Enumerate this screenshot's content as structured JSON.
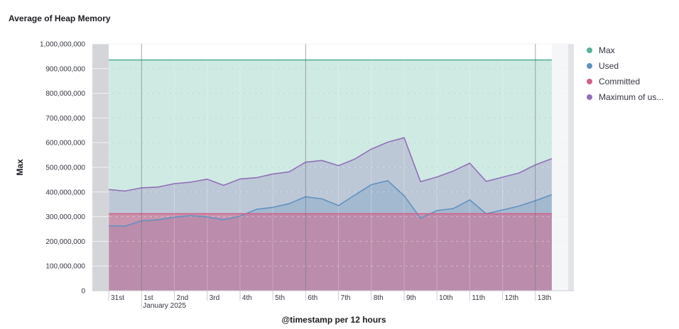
{
  "chart_data": {
    "type": "area",
    "title": "Average of Heap Memory",
    "xlabel": "@timestamp per 12 hours",
    "ylabel": "Max",
    "ylim": [
      0,
      1000000000
    ],
    "yticks": [
      0,
      100000000,
      200000000,
      300000000,
      400000000,
      500000000,
      600000000,
      700000000,
      800000000,
      900000000,
      1000000000
    ],
    "ytick_labels": [
      "0",
      "100,000,000",
      "200,000,000",
      "300,000,000",
      "400,000,000",
      "500,000,000",
      "600,000,000",
      "700,000,000",
      "800,000,000",
      "900,000,000",
      "1,000,000,000"
    ],
    "xlim": [
      "2024-12-30T12:00",
      "2025-01-14T00:00"
    ],
    "x": [
      "2024-12-31T00:00",
      "2024-12-31T12:00",
      "2025-01-01T00:00",
      "2025-01-01T12:00",
      "2025-01-02T00:00",
      "2025-01-02T12:00",
      "2025-01-03T00:00",
      "2025-01-03T12:00",
      "2025-01-04T00:00",
      "2025-01-04T12:00",
      "2025-01-05T00:00",
      "2025-01-05T12:00",
      "2025-01-06T00:00",
      "2025-01-06T12:00",
      "2025-01-07T00:00",
      "2025-01-07T12:00",
      "2025-01-08T00:00",
      "2025-01-08T12:00",
      "2025-01-09T00:00",
      "2025-01-09T12:00",
      "2025-01-10T00:00",
      "2025-01-10T12:00",
      "2025-01-11T00:00",
      "2025-01-11T12:00",
      "2025-01-12T00:00",
      "2025-01-12T12:00",
      "2025-01-13T00:00",
      "2025-01-13T12:00"
    ],
    "xticks": [
      {
        "date": "2024-12-31T00:00",
        "label": "31st"
      },
      {
        "date": "2025-01-01T00:00",
        "label": "1st"
      },
      {
        "date": "2025-01-02T00:00",
        "label": "2nd"
      },
      {
        "date": "2025-01-03T00:00",
        "label": "3rd"
      },
      {
        "date": "2025-01-04T00:00",
        "label": "4th"
      },
      {
        "date": "2025-01-05T00:00",
        "label": "5th"
      },
      {
        "date": "2025-01-06T00:00",
        "label": "6th"
      },
      {
        "date": "2025-01-07T00:00",
        "label": "7th"
      },
      {
        "date": "2025-01-08T00:00",
        "label": "8th"
      },
      {
        "date": "2025-01-09T00:00",
        "label": "9th"
      },
      {
        "date": "2025-01-10T00:00",
        "label": "10th"
      },
      {
        "date": "2025-01-11T00:00",
        "label": "11th"
      },
      {
        "date": "2025-01-12T00:00",
        "label": "12th"
      },
      {
        "date": "2025-01-13T00:00",
        "label": "13th"
      }
    ],
    "x_sublabel": {
      "date": "2025-01-01T00:00",
      "label": "January 2025"
    },
    "markers": [
      "2025-01-01T00:00",
      "2025-01-06T00:00",
      "2025-01-13T00:00"
    ],
    "series": [
      {
        "name": "Max",
        "color": "#54b399",
        "values": [
          935000000,
          935000000,
          935000000,
          935000000,
          935000000,
          935000000,
          935000000,
          935000000,
          935000000,
          935000000,
          935000000,
          935000000,
          935000000,
          935000000,
          935000000,
          935000000,
          935000000,
          935000000,
          935000000,
          935000000,
          935000000,
          935000000,
          935000000,
          935000000,
          935000000,
          935000000,
          935000000,
          935000000
        ]
      },
      {
        "name": "Maximum of us...",
        "color": "#9170b8",
        "values": [
          410000000,
          404000000,
          417000000,
          420000000,
          434000000,
          440000000,
          452000000,
          427000000,
          453000000,
          458000000,
          473000000,
          482000000,
          521000000,
          528000000,
          507000000,
          534000000,
          574000000,
          602000000,
          620000000,
          442000000,
          461000000,
          485000000,
          517000000,
          443000000,
          460000000,
          477000000,
          510000000,
          535000000
        ]
      },
      {
        "name": "Used",
        "color": "#6092c0",
        "values": [
          263000000,
          262000000,
          283000000,
          287000000,
          298000000,
          304000000,
          299000000,
          288000000,
          302000000,
          330000000,
          338000000,
          353000000,
          381000000,
          372000000,
          345000000,
          388000000,
          430000000,
          446000000,
          385000000,
          294000000,
          325000000,
          333000000,
          368000000,
          312000000,
          327000000,
          343000000,
          365000000,
          389000000
        ]
      },
      {
        "name": "Committed",
        "color": "#d36086",
        "values": [
          312000000,
          312000000,
          312000000,
          312000000,
          312000000,
          312000000,
          312000000,
          312000000,
          312000000,
          312000000,
          312000000,
          312000000,
          312000000,
          312000000,
          312000000,
          312000000,
          312000000,
          312000000,
          312000000,
          312000000,
          312000000,
          312000000,
          312000000,
          312000000,
          312000000,
          312000000,
          312000000,
          312000000
        ]
      }
    ],
    "legend": [
      "Max",
      "Used",
      "Committed",
      "Maximum of us..."
    ],
    "legend_position": "right",
    "grid": true
  }
}
